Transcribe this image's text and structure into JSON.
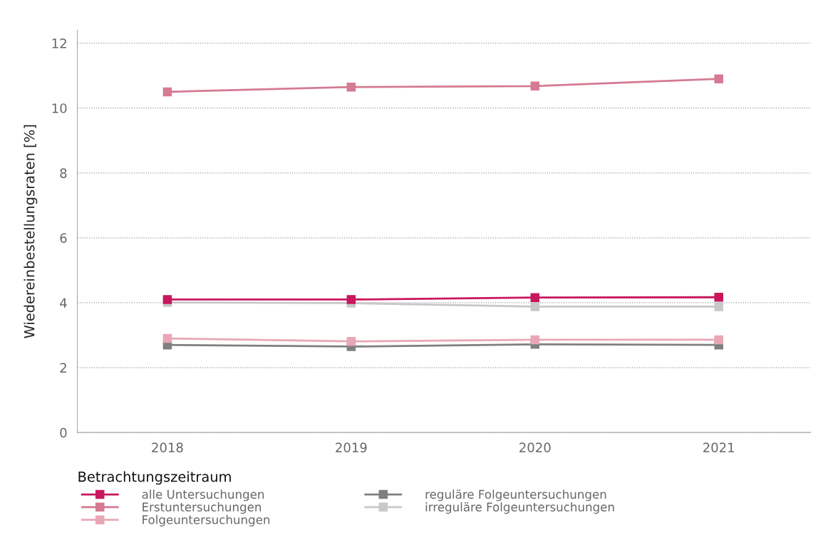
{
  "chart_data": {
    "type": "line",
    "ylabel": "Wiedereinbestellungsraten [%]",
    "xlabel": "Betrachtungszeitraum",
    "categories": [
      "2018",
      "2019",
      "2020",
      "2021"
    ],
    "series": [
      {
        "name": "alle Untersuchungen",
        "color": "#c8175d",
        "values": [
          4.1,
          4.1,
          4.16,
          4.17
        ]
      },
      {
        "name": "Erstuntersuchungen",
        "color": "#d47a92",
        "values": [
          10.5,
          10.65,
          10.68,
          10.9
        ]
      },
      {
        "name": "Folgeuntersuchungen",
        "color": "#e8a7b6",
        "values": [
          2.9,
          2.81,
          2.86,
          2.86
        ]
      },
      {
        "name": "reguläre Folgeuntersuchungen",
        "color": "#7f7f7f",
        "values": [
          2.7,
          2.65,
          2.72,
          2.7
        ]
      },
      {
        "name": "irreguläre Folgeuntersuchungen",
        "color": "#c8c8c8",
        "values": [
          4.01,
          3.99,
          3.88,
          3.88
        ]
      }
    ],
    "ylim": [
      0,
      12.4
    ],
    "yticks": [
      0,
      2,
      4,
      6,
      8,
      10,
      12
    ],
    "grid": "y",
    "legend": "bottom",
    "marker": "square",
    "line_style": "solid"
  }
}
